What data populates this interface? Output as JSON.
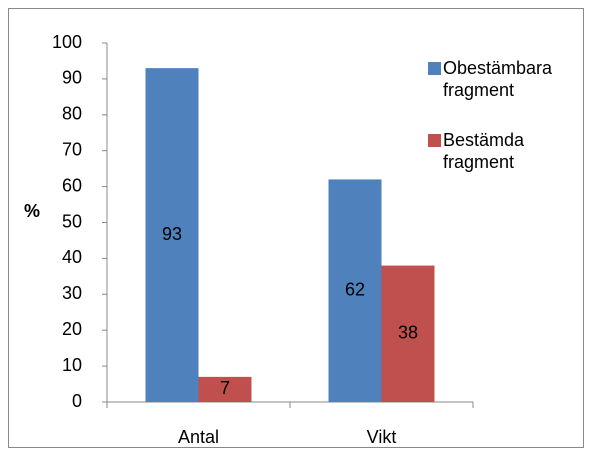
{
  "chart_data": {
    "type": "bar",
    "y_label": "%",
    "categories": [
      "Antal",
      "Vikt"
    ],
    "series": [
      {
        "name": "Obestämbara fragment",
        "color": "#4f81bd",
        "values": [
          93,
          62
        ]
      },
      {
        "name": "Bestämda fragment",
        "color": "#c0504d",
        "values": [
          7,
          38
        ]
      }
    ],
    "ylim": [
      0,
      100
    ],
    "yticks": [
      0,
      10,
      20,
      30,
      40,
      50,
      60,
      70,
      80,
      90,
      100
    ],
    "grid": false,
    "legend": "right"
  }
}
